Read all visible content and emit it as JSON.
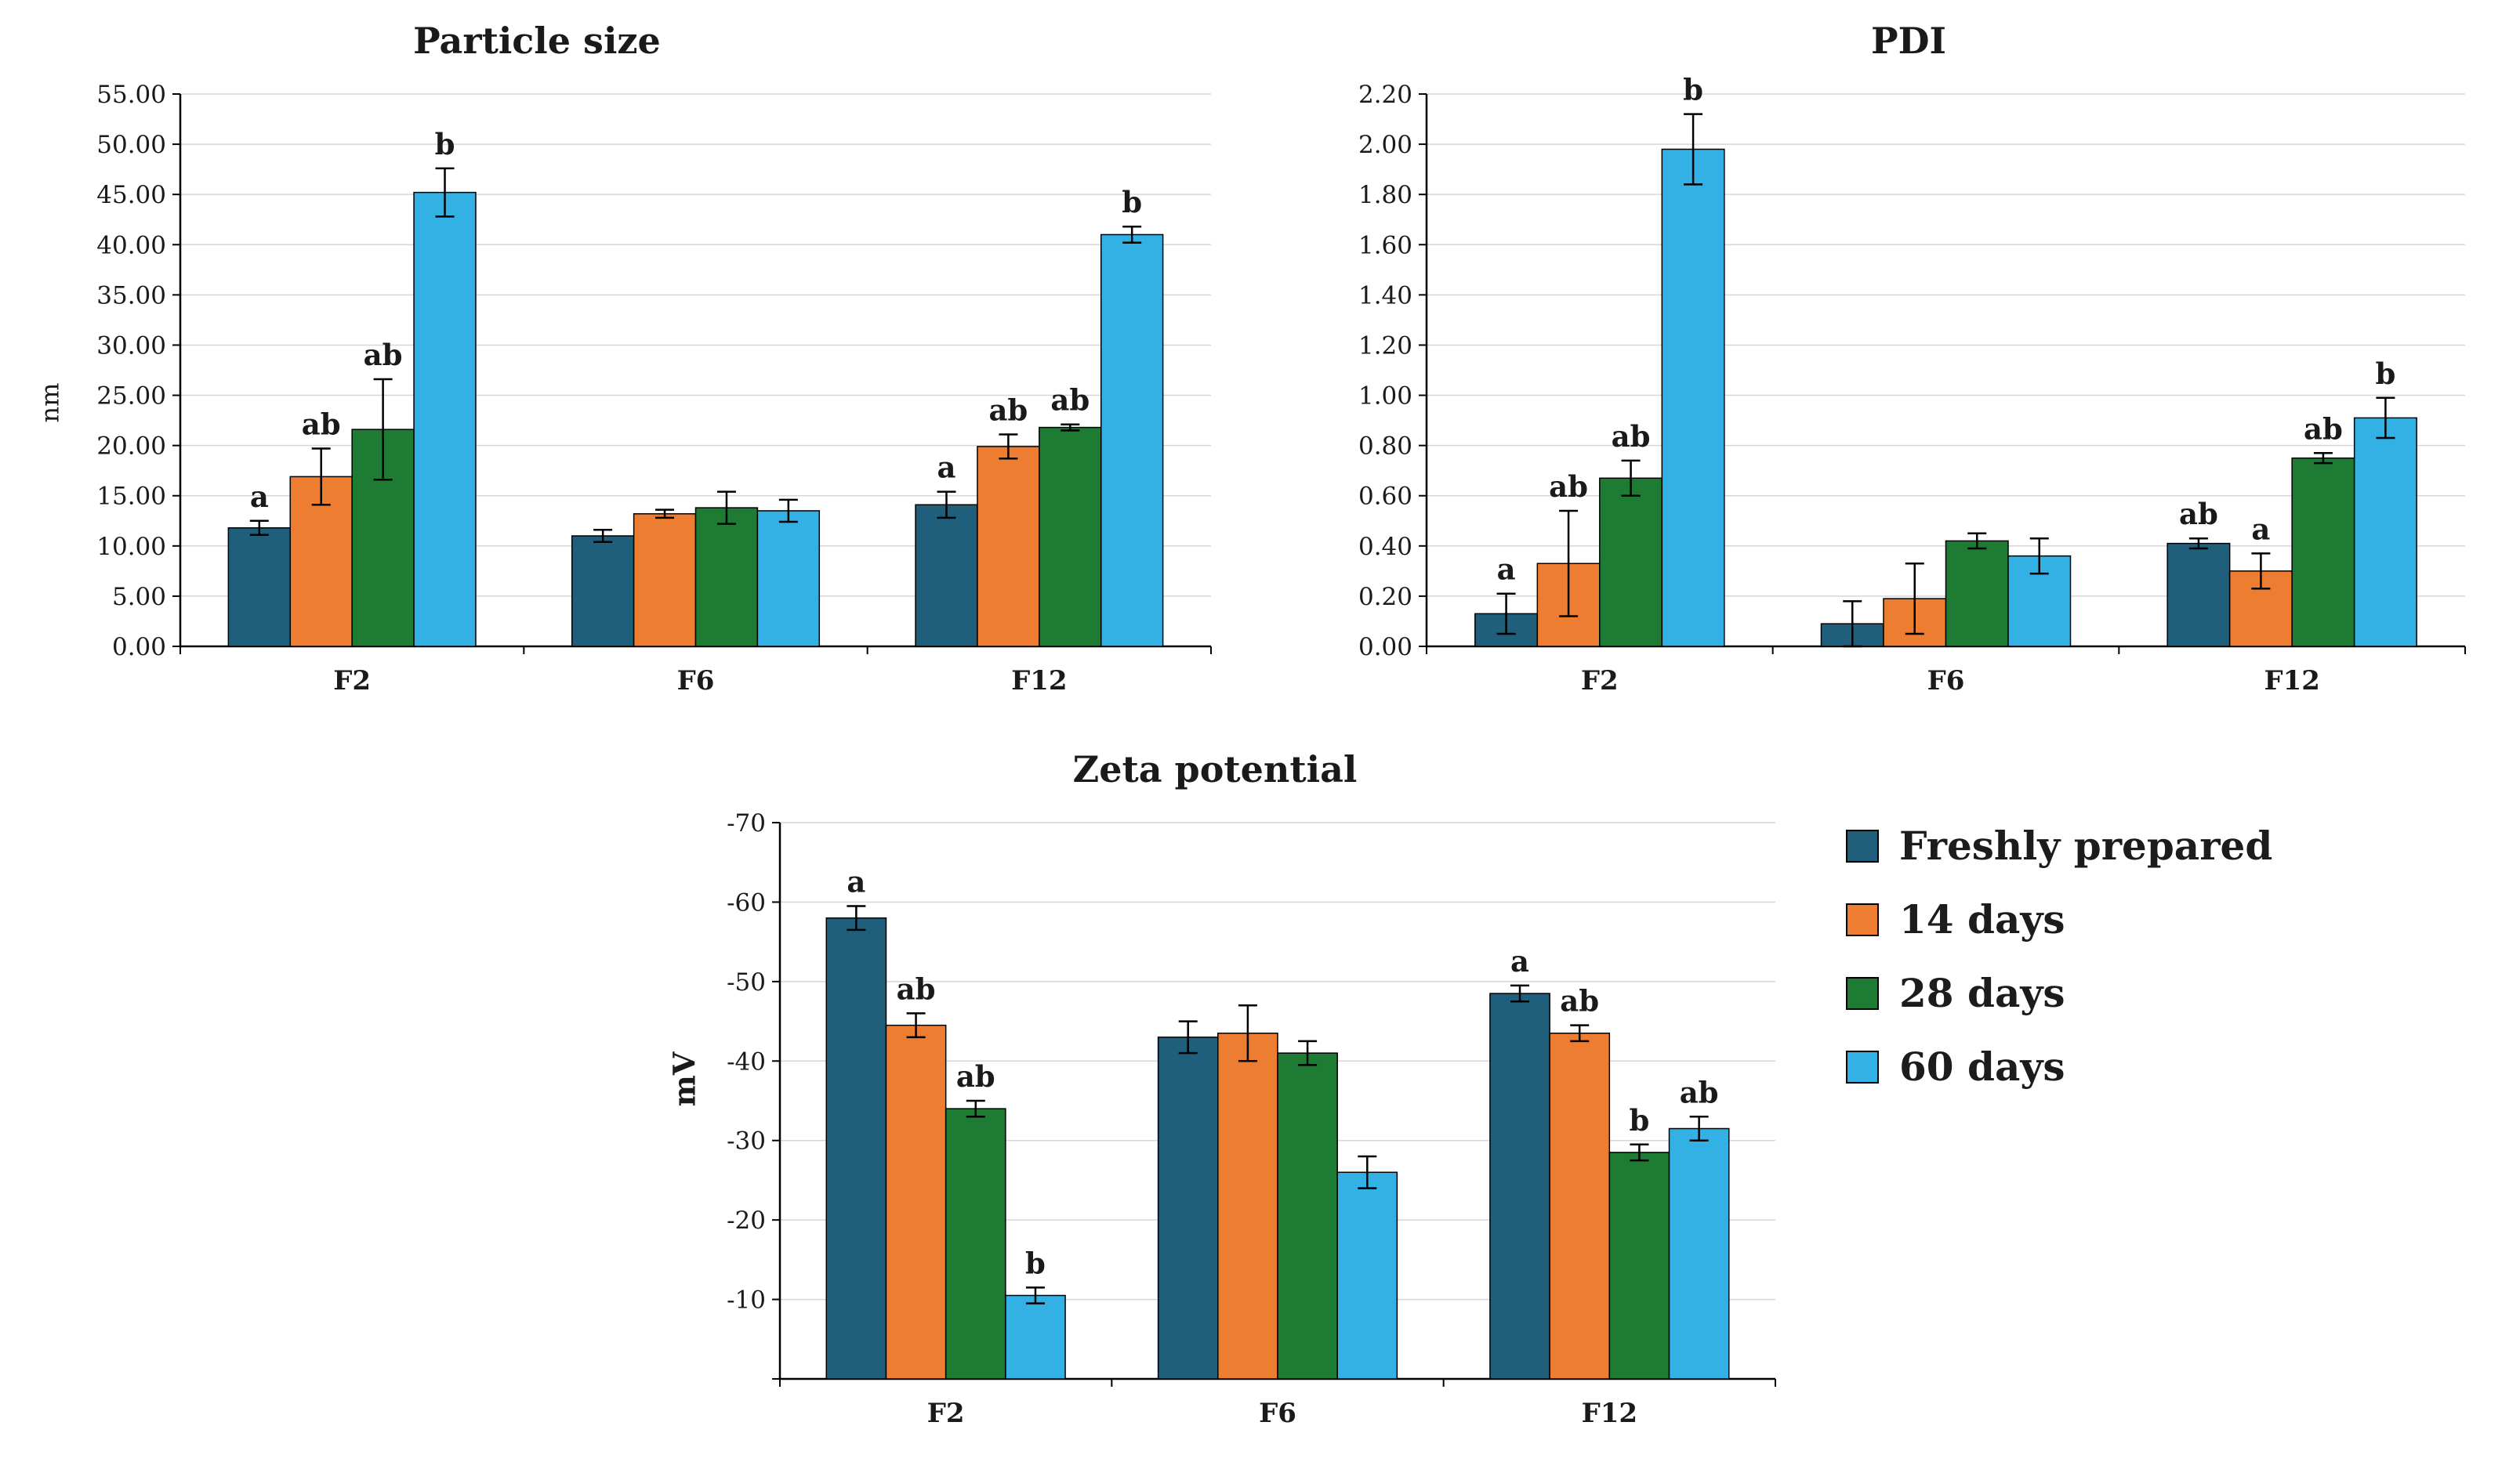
{
  "page": {
    "background": "#ffffff"
  },
  "legend": {
    "items": [
      {
        "label": "Freshly prepared",
        "color": "#1F5F7B"
      },
      {
        "label": "14 days",
        "color": "#ED7D31"
      },
      {
        "label": "28 days",
        "color": "#1E7B34"
      },
      {
        "label": "60 days",
        "color": "#33B1E4"
      }
    ]
  },
  "chart_data": [
    {
      "type": "bar",
      "title": "Particle size",
      "ylabel": "nm",
      "categories": [
        "F2",
        "F6",
        "F12"
      ],
      "ylim": [
        0,
        55
      ],
      "ytick_step": 5,
      "ytick_decimals": 2,
      "grid": true,
      "legend_position": "none",
      "series": [
        {
          "name": "Freshly prepared",
          "values": [
            11.8,
            11.0,
            14.1
          ],
          "errors": [
            0.7,
            0.6,
            1.3
          ],
          "letters": [
            "a",
            "",
            "a"
          ]
        },
        {
          "name": "14 days",
          "values": [
            16.9,
            13.2,
            19.9
          ],
          "errors": [
            2.8,
            0.4,
            1.2
          ],
          "letters": [
            "ab",
            "",
            "ab"
          ]
        },
        {
          "name": "28 days",
          "values": [
            21.6,
            13.8,
            21.8
          ],
          "errors": [
            5.0,
            1.6,
            0.3
          ],
          "letters": [
            "ab",
            "",
            "ab"
          ]
        },
        {
          "name": "60 days",
          "values": [
            45.2,
            13.5,
            41.0
          ],
          "errors": [
            2.4,
            1.1,
            0.8
          ],
          "letters": [
            "b",
            "",
            "b"
          ]
        }
      ]
    },
    {
      "type": "bar",
      "title": "PDI",
      "ylabel": "",
      "categories": [
        "F2",
        "F6",
        "F12"
      ],
      "ylim": [
        0,
        2.2
      ],
      "ytick_step": 0.2,
      "ytick_decimals": 2,
      "grid": true,
      "legend_position": "none",
      "series": [
        {
          "name": "Freshly prepared",
          "values": [
            0.13,
            0.09,
            0.41
          ],
          "errors": [
            0.08,
            0.09,
            0.02
          ],
          "letters": [
            "a",
            "",
            "ab"
          ]
        },
        {
          "name": "14 days",
          "values": [
            0.33,
            0.19,
            0.3
          ],
          "errors": [
            0.21,
            0.14,
            0.07
          ],
          "letters": [
            "ab",
            "",
            "a"
          ]
        },
        {
          "name": "28 days",
          "values": [
            0.67,
            0.42,
            0.75
          ],
          "errors": [
            0.07,
            0.03,
            0.02
          ],
          "letters": [
            "ab",
            "",
            "ab"
          ]
        },
        {
          "name": "60 days",
          "values": [
            1.98,
            0.36,
            0.91
          ],
          "errors": [
            0.14,
            0.07,
            0.08
          ],
          "letters": [
            "b",
            "",
            "b"
          ]
        }
      ]
    },
    {
      "type": "bar",
      "title": "Zeta potential",
      "ylabel": "mV",
      "categories": [
        "F2",
        "F6",
        "F12"
      ],
      "ylim": [
        0,
        70
      ],
      "ytick_step": 10,
      "ytick_decimals": 0,
      "tick_prefix": "-",
      "abs_values": true,
      "hide_zero_tick": true,
      "grid": true,
      "legend_position": "right",
      "series": [
        {
          "name": "Freshly prepared",
          "values": [
            -58.0,
            -43.0,
            -48.5
          ],
          "errors": [
            1.5,
            2.0,
            1.0
          ],
          "letters": [
            "a",
            "",
            "a"
          ]
        },
        {
          "name": "14 days",
          "values": [
            -44.5,
            -43.5,
            -43.5
          ],
          "errors": [
            1.5,
            3.5,
            1.0
          ],
          "letters": [
            "ab",
            "",
            "ab"
          ]
        },
        {
          "name": "28 days",
          "values": [
            -34.0,
            -41.0,
            -28.5
          ],
          "errors": [
            1.0,
            1.5,
            1.0
          ],
          "letters": [
            "ab",
            "",
            "b"
          ]
        },
        {
          "name": "60 days",
          "values": [
            -10.5,
            -26.0,
            -31.5
          ],
          "errors": [
            1.0,
            2.0,
            1.5
          ],
          "letters": [
            "b",
            "",
            "ab"
          ]
        }
      ]
    }
  ]
}
